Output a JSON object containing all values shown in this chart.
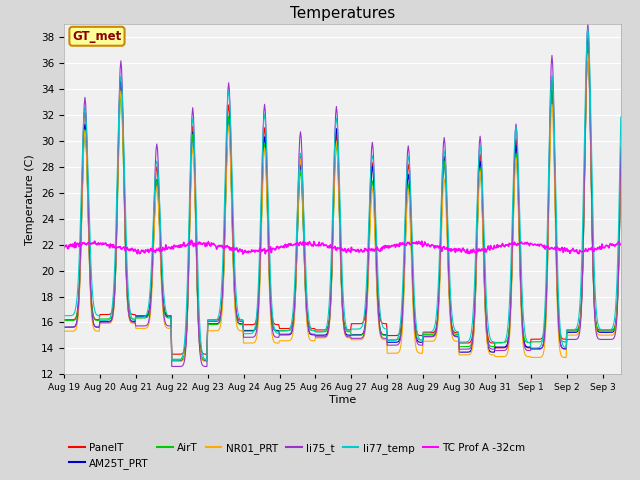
{
  "title": "Temperatures",
  "xlabel": "Time",
  "ylabel": "Temperature (C)",
  "ylim": [
    12,
    39
  ],
  "yticks": [
    12,
    14,
    16,
    18,
    20,
    22,
    24,
    26,
    28,
    30,
    32,
    34,
    36,
    38
  ],
  "fig_bg_color": "#d8d8d8",
  "plot_bg_color": "#f0f0f0",
  "series_colors": {
    "PanelT": "#ff0000",
    "AM25T_PRT": "#0000cc",
    "AirT": "#00cc00",
    "NR01_PRT": "#ffaa00",
    "li75_t": "#9933cc",
    "li77_temp": "#00cccc",
    "TC_Prof": "#ff00ff"
  },
  "gt_met_annotation": "GT_met",
  "tc_prof_mean": 21.8
}
